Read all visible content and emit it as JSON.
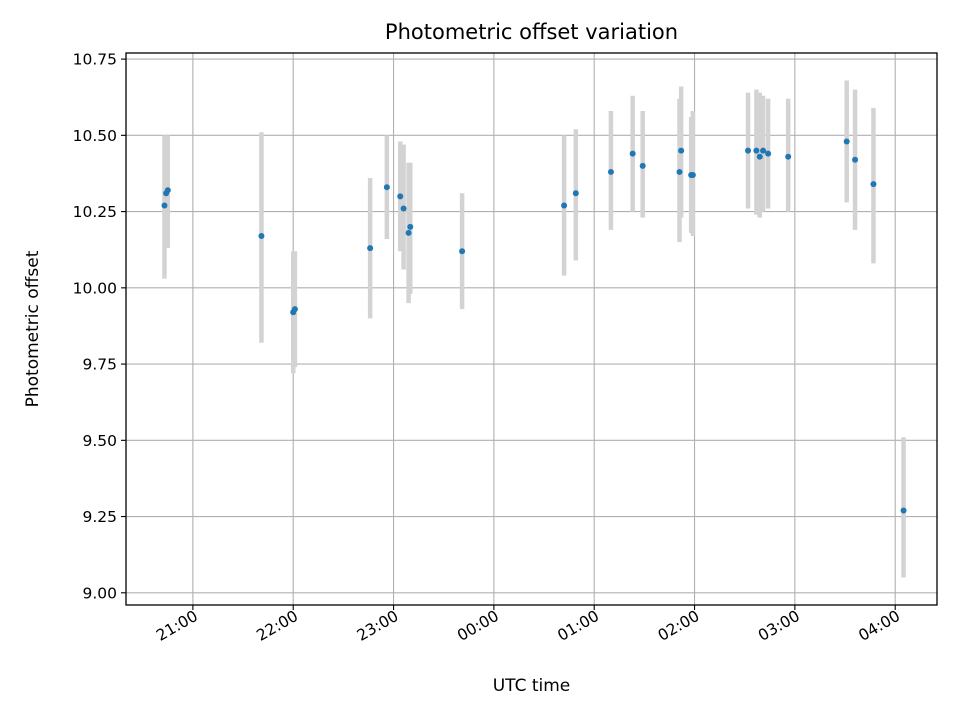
{
  "chart_data": {
    "type": "scatter",
    "title": "Photometric offset variation",
    "xlabel": "UTC time",
    "ylabel": "Photometric offset",
    "x_unit": "UTC time",
    "xlim": [
      "20:20",
      "04:25"
    ],
    "ylim": [
      8.96,
      10.77
    ],
    "xticks": [
      "21:00",
      "22:00",
      "23:00",
      "00:00",
      "01:00",
      "02:00",
      "03:00",
      "04:00"
    ],
    "yticks": [
      "9.00",
      "9.25",
      "9.50",
      "9.75",
      "10.00",
      "10.25",
      "10.50",
      "10.75"
    ],
    "grid": true,
    "colors": {
      "points": "#1f77b4",
      "error_bars": "#d3d3d3",
      "grid": "#b0b0b0"
    },
    "series": [
      {
        "points": [
          {
            "x": "20:43",
            "y": 10.27,
            "yerr": [
              10.03,
              10.5
            ]
          },
          {
            "x": "20:44",
            "y": 10.31,
            "yerr": [
              10.15,
              10.5
            ]
          },
          {
            "x": "20:45",
            "y": 10.32,
            "yerr": [
              10.13,
              10.5
            ]
          },
          {
            "x": "21:41",
            "y": 10.17,
            "yerr": [
              9.82,
              10.51
            ]
          },
          {
            "x": "22:00",
            "y": 9.92,
            "yerr": [
              9.72,
              10.12
            ]
          },
          {
            "x": "22:01",
            "y": 9.93,
            "yerr": [
              9.74,
              10.12
            ]
          },
          {
            "x": "22:46",
            "y": 10.13,
            "yerr": [
              9.9,
              10.36
            ]
          },
          {
            "x": "22:56",
            "y": 10.33,
            "yerr": [
              10.16,
              10.5
            ]
          },
          {
            "x": "23:04",
            "y": 10.3,
            "yerr": [
              10.12,
              10.48
            ]
          },
          {
            "x": "23:06",
            "y": 10.26,
            "yerr": [
              10.06,
              10.47
            ]
          },
          {
            "x": "23:09",
            "y": 10.18,
            "yerr": [
              9.95,
              10.41
            ]
          },
          {
            "x": "23:10",
            "y": 10.2,
            "yerr": [
              9.98,
              10.41
            ]
          },
          {
            "x": "23:41",
            "y": 10.12,
            "yerr": [
              9.93,
              10.31
            ]
          },
          {
            "x": "00:42",
            "y": 10.27,
            "yerr": [
              10.04,
              10.5
            ]
          },
          {
            "x": "00:49",
            "y": 10.31,
            "yerr": [
              10.09,
              10.52
            ]
          },
          {
            "x": "01:10",
            "y": 10.38,
            "yerr": [
              10.19,
              10.58
            ]
          },
          {
            "x": "01:23",
            "y": 10.44,
            "yerr": [
              10.25,
              10.63
            ]
          },
          {
            "x": "01:29",
            "y": 10.4,
            "yerr": [
              10.23,
              10.58
            ]
          },
          {
            "x": "01:51",
            "y": 10.38,
            "yerr": [
              10.15,
              10.62
            ]
          },
          {
            "x": "01:52",
            "y": 10.45,
            "yerr": [
              10.23,
              10.66
            ]
          },
          {
            "x": "01:58",
            "y": 10.37,
            "yerr": [
              10.18,
              10.56
            ]
          },
          {
            "x": "01:59",
            "y": 10.37,
            "yerr": [
              10.17,
              10.58
            ]
          },
          {
            "x": "02:32",
            "y": 10.45,
            "yerr": [
              10.26,
              10.64
            ]
          },
          {
            "x": "02:37",
            "y": 10.45,
            "yerr": [
              10.24,
              10.65
            ]
          },
          {
            "x": "02:39",
            "y": 10.43,
            "yerr": [
              10.23,
              10.64
            ]
          },
          {
            "x": "02:41",
            "y": 10.45,
            "yerr": [
              10.25,
              10.63
            ]
          },
          {
            "x": "02:44",
            "y": 10.44,
            "yerr": [
              10.26,
              10.62
            ]
          },
          {
            "x": "02:56",
            "y": 10.43,
            "yerr": [
              10.25,
              10.62
            ]
          },
          {
            "x": "03:31",
            "y": 10.48,
            "yerr": [
              10.28,
              10.68
            ]
          },
          {
            "x": "03:36",
            "y": 10.42,
            "yerr": [
              10.19,
              10.65
            ]
          },
          {
            "x": "03:47",
            "y": 10.34,
            "yerr": [
              10.08,
              10.59
            ]
          },
          {
            "x": "04:05",
            "y": 9.27,
            "yerr": [
              9.05,
              9.51
            ]
          }
        ]
      }
    ]
  }
}
